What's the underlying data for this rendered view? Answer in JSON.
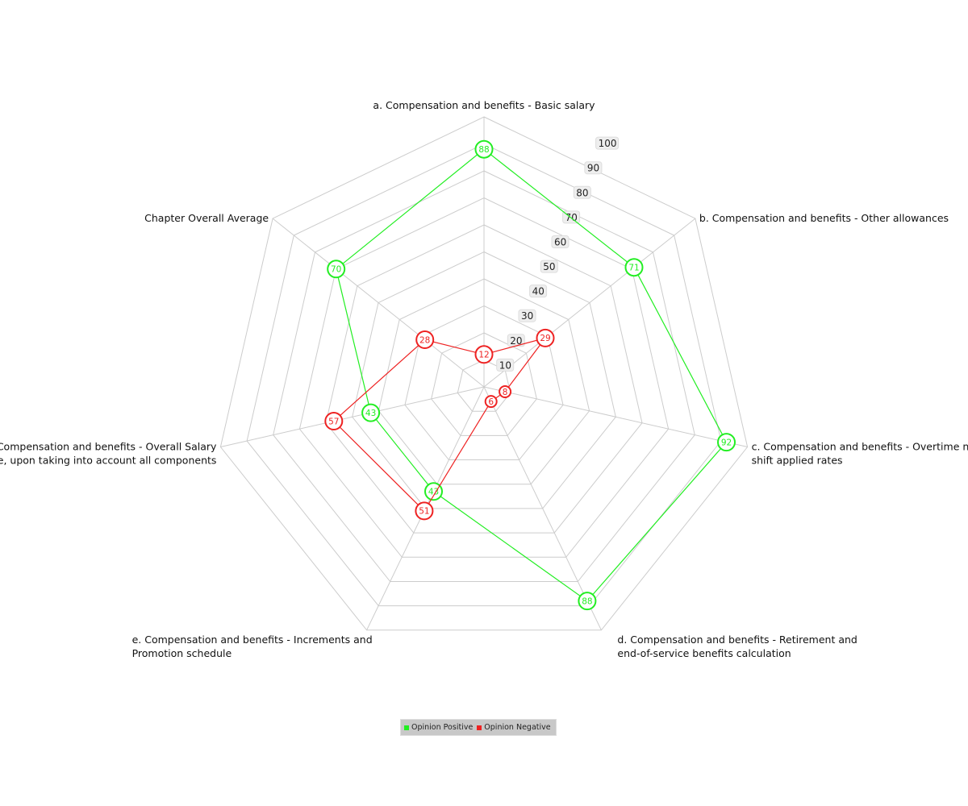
{
  "chart_data": {
    "type": "radar",
    "axes": [
      "a. Compensation and benefits - Basic salary",
      "b. Compensation and benefits - Other allowances",
      "c. Compensation and benefits - Overtime  night shift applied rates",
      "d. Compensation and benefits - Retirement and end-of-service benefits calculation",
      "e. Compensation and benefits - Increments and Promotion schedule",
      "f. Compensation and benefits - Overall Salary package, upon taking into account all components",
      "Chapter Overall Average"
    ],
    "axis_label_lines": [
      [
        "a. Compensation and benefits - Basic salary"
      ],
      [
        "b. Compensation and benefits - Other allowances"
      ],
      [
        "c. Compensation and benefits - Overtime  night",
        "shift applied rates"
      ],
      [
        "d. Compensation and benefits - Retirement and",
        "end-of-service benefits calculation"
      ],
      [
        "e. Compensation and benefits - Increments and",
        "Promotion schedule"
      ],
      [
        "f. Compensation and benefits - Overall Salary",
        "package, upon taking into account all components"
      ],
      [
        "Chapter Overall Average"
      ]
    ],
    "series": [
      {
        "name": "Opinion Positive",
        "color": "#22ee22",
        "values": [
          88,
          71,
          92,
          88,
          43,
          43,
          70
        ]
      },
      {
        "name": "Opinion Negative",
        "color": "#ee2222",
        "values": [
          12,
          29,
          8,
          6,
          51,
          57,
          28
        ]
      }
    ],
    "ticks": [
      10,
      20,
      30,
      40,
      50,
      60,
      70,
      80,
      90,
      100
    ],
    "range": [
      0,
      100
    ],
    "grid": true,
    "legend_position": "bottom"
  }
}
